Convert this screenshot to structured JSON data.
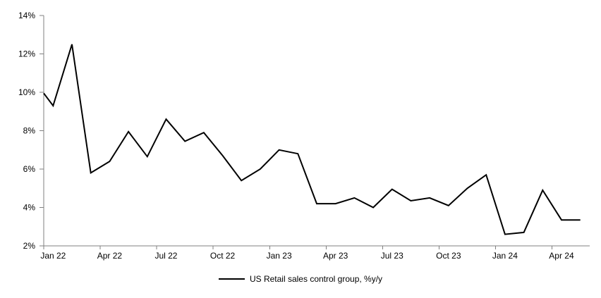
{
  "figure": {
    "background": "#ffffff"
  },
  "chart_data": {
    "type": "line",
    "title": "",
    "xlabel": "",
    "ylabel": "",
    "x": [
      "Jan 22",
      "Feb 22",
      "Mar 22",
      "Apr 22",
      "May 22",
      "Jun 22",
      "Jul 22",
      "Aug 22",
      "Sep 22",
      "Oct 22",
      "Nov 22",
      "Dec 22",
      "Jan 23",
      "Feb 23",
      "Mar 23",
      "Apr 23",
      "May 23",
      "Jun 23",
      "Jul 23",
      "Aug 23",
      "Sep 23",
      "Oct 23",
      "Nov 23",
      "Dec 23",
      "Jan 24",
      "Feb 24",
      "Mar 24",
      "Apr 24",
      "May 24"
    ],
    "values": [
      9.3,
      12.5,
      5.8,
      6.4,
      7.95,
      6.65,
      8.6,
      7.45,
      7.9,
      6.7,
      5.4,
      6.0,
      7.0,
      6.8,
      4.2,
      4.2,
      4.5,
      4.0,
      4.95,
      4.35,
      4.5,
      4.1,
      5.0,
      5.7,
      2.6,
      2.7,
      4.9,
      3.35,
      3.35
    ],
    "axis_lead_in_value": 9.95,
    "x_tick_labels": [
      "Jan 22",
      "Apr 22",
      "Jul 22",
      "Oct 22",
      "Jan 23",
      "Apr 23",
      "Jul 23",
      "Oct 23",
      "Jan 24",
      "Apr 24"
    ],
    "x_tick_interval_months": 3,
    "y_tick_labels": [
      "2%",
      "4%",
      "6%",
      "8%",
      "10%",
      "12%",
      "14%"
    ],
    "ylim": [
      2,
      14
    ],
    "y_tick_step": 2,
    "grid": false,
    "legend_label": "US Retail sales control group, %y/y",
    "legend_position": "bottom-center",
    "series_color": "#000000",
    "series_stroke_width": 2,
    "axis_color": "#808080",
    "label_color": "#000000",
    "tick_font_size": 12
  }
}
